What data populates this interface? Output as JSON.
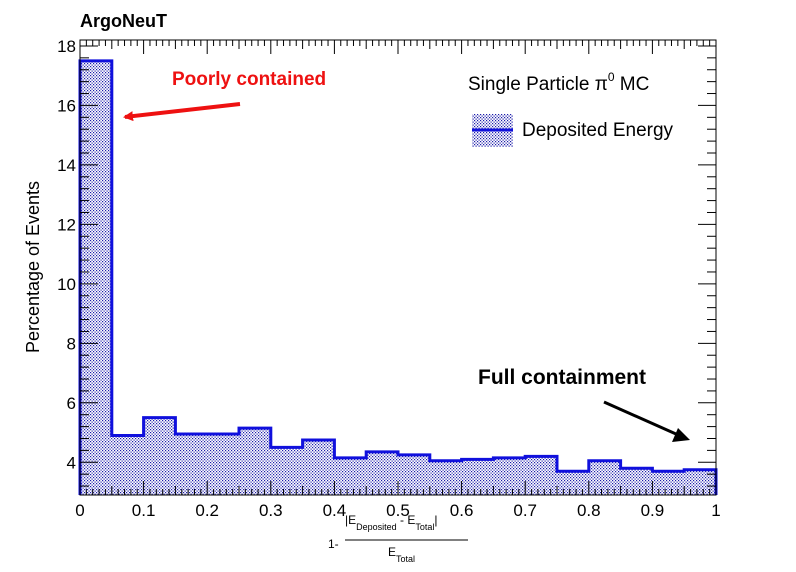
{
  "chart_data": {
    "type": "bar",
    "title": "ArgoNeuT",
    "ylabel": "Percentage of Events",
    "xlabel": {
      "prefix": "1-",
      "numerator_open": "|E",
      "numerator_sub1": "Deposited",
      "numerator_mid": " - E",
      "numerator_sub2": "Total",
      "numerator_close": "|",
      "denominator": "E",
      "denominator_sub": "Total"
    },
    "xlim": [
      0,
      1
    ],
    "ylim": [
      2.9,
      18.2
    ],
    "x_ticks": [
      "0",
      "0.1",
      "0.2",
      "0.3",
      "0.4",
      "0.5",
      "0.6",
      "0.7",
      "0.8",
      "0.9",
      "1"
    ],
    "y_ticks": [
      "4",
      "6",
      "8",
      "10",
      "12",
      "14",
      "16",
      "18"
    ],
    "bin_width": 0.05,
    "bin_edges_start": 0,
    "values": [
      17.5,
      4.9,
      5.5,
      4.95,
      4.95,
      5.15,
      4.5,
      4.75,
      4.15,
      4.35,
      4.25,
      4.05,
      4.1,
      4.15,
      4.2,
      3.7,
      4.05,
      3.8,
      3.7,
      3.75
    ],
    "series_name": "Deposited Energy",
    "legend_title_main": "Single Particle π",
    "legend_title_sup": "0",
    "legend_title_end": " MC",
    "legend_position": "top-right",
    "annotations": {
      "poorly_contained": "Poorly contained",
      "full_containment": "Full containment"
    },
    "colors": {
      "line": "#1010dd",
      "fill_pattern": "#1a1aaa",
      "arrow_red": "#ee1111",
      "arrow_black": "#000000"
    }
  }
}
